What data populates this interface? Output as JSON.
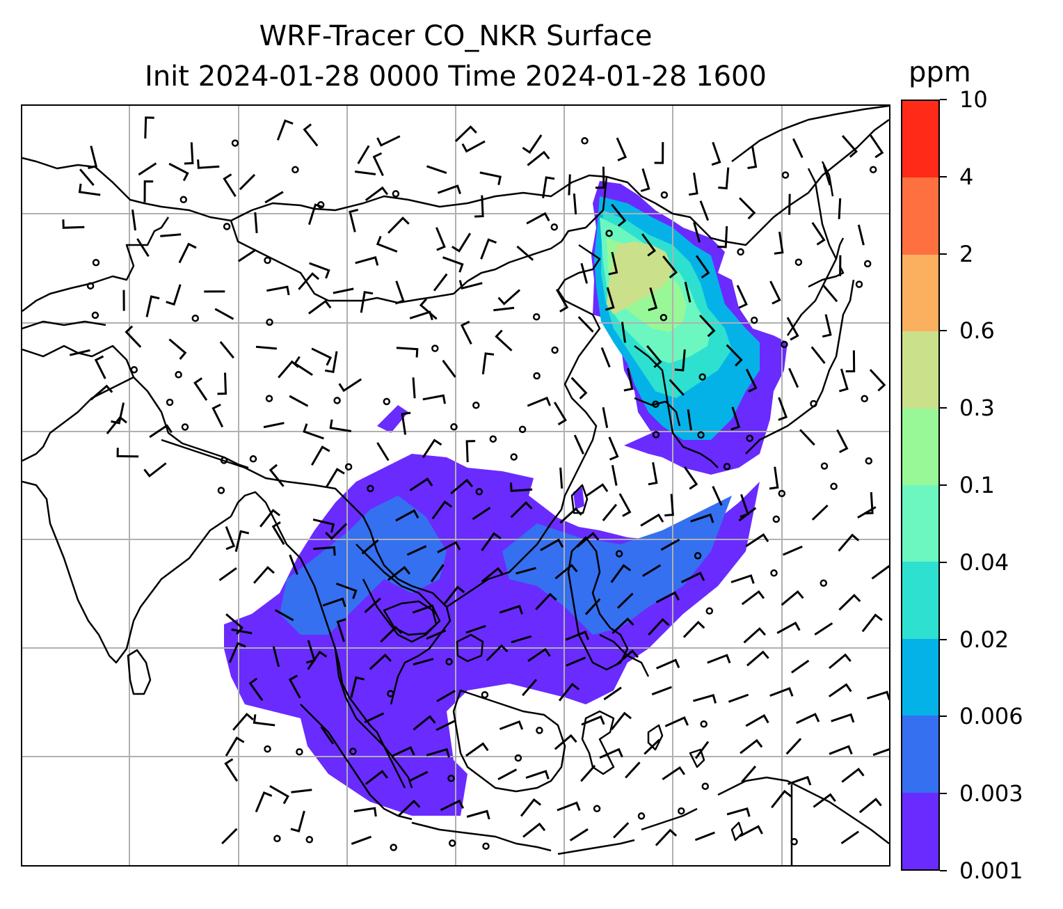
{
  "title": {
    "line1": "WRF-Tracer CO_NKR Surface",
    "line2": "Init 2024-01-28 0000 Time 2024-01-28 1600"
  },
  "map": {
    "grid": true,
    "features": [
      "coastlines",
      "country-borders",
      "lat-lon-gridlines",
      "wind-barbs",
      "calm-wind-circles",
      "tracer-concentration-fill"
    ]
  },
  "colorbar": {
    "unit": "ppm",
    "tick_labels": [
      "0.001",
      "0.003",
      "0.006",
      "0.02",
      "0.04",
      "0.1",
      "0.3",
      "0.6",
      "2",
      "4",
      "10"
    ],
    "colors": [
      "#6a2bff",
      "#3470f0",
      "#05b2e8",
      "#2ee0d0",
      "#6cf7c0",
      "#98f897",
      "#cbe08a",
      "#fbb060",
      "#ff7040",
      "#ff2a18"
    ]
  }
}
